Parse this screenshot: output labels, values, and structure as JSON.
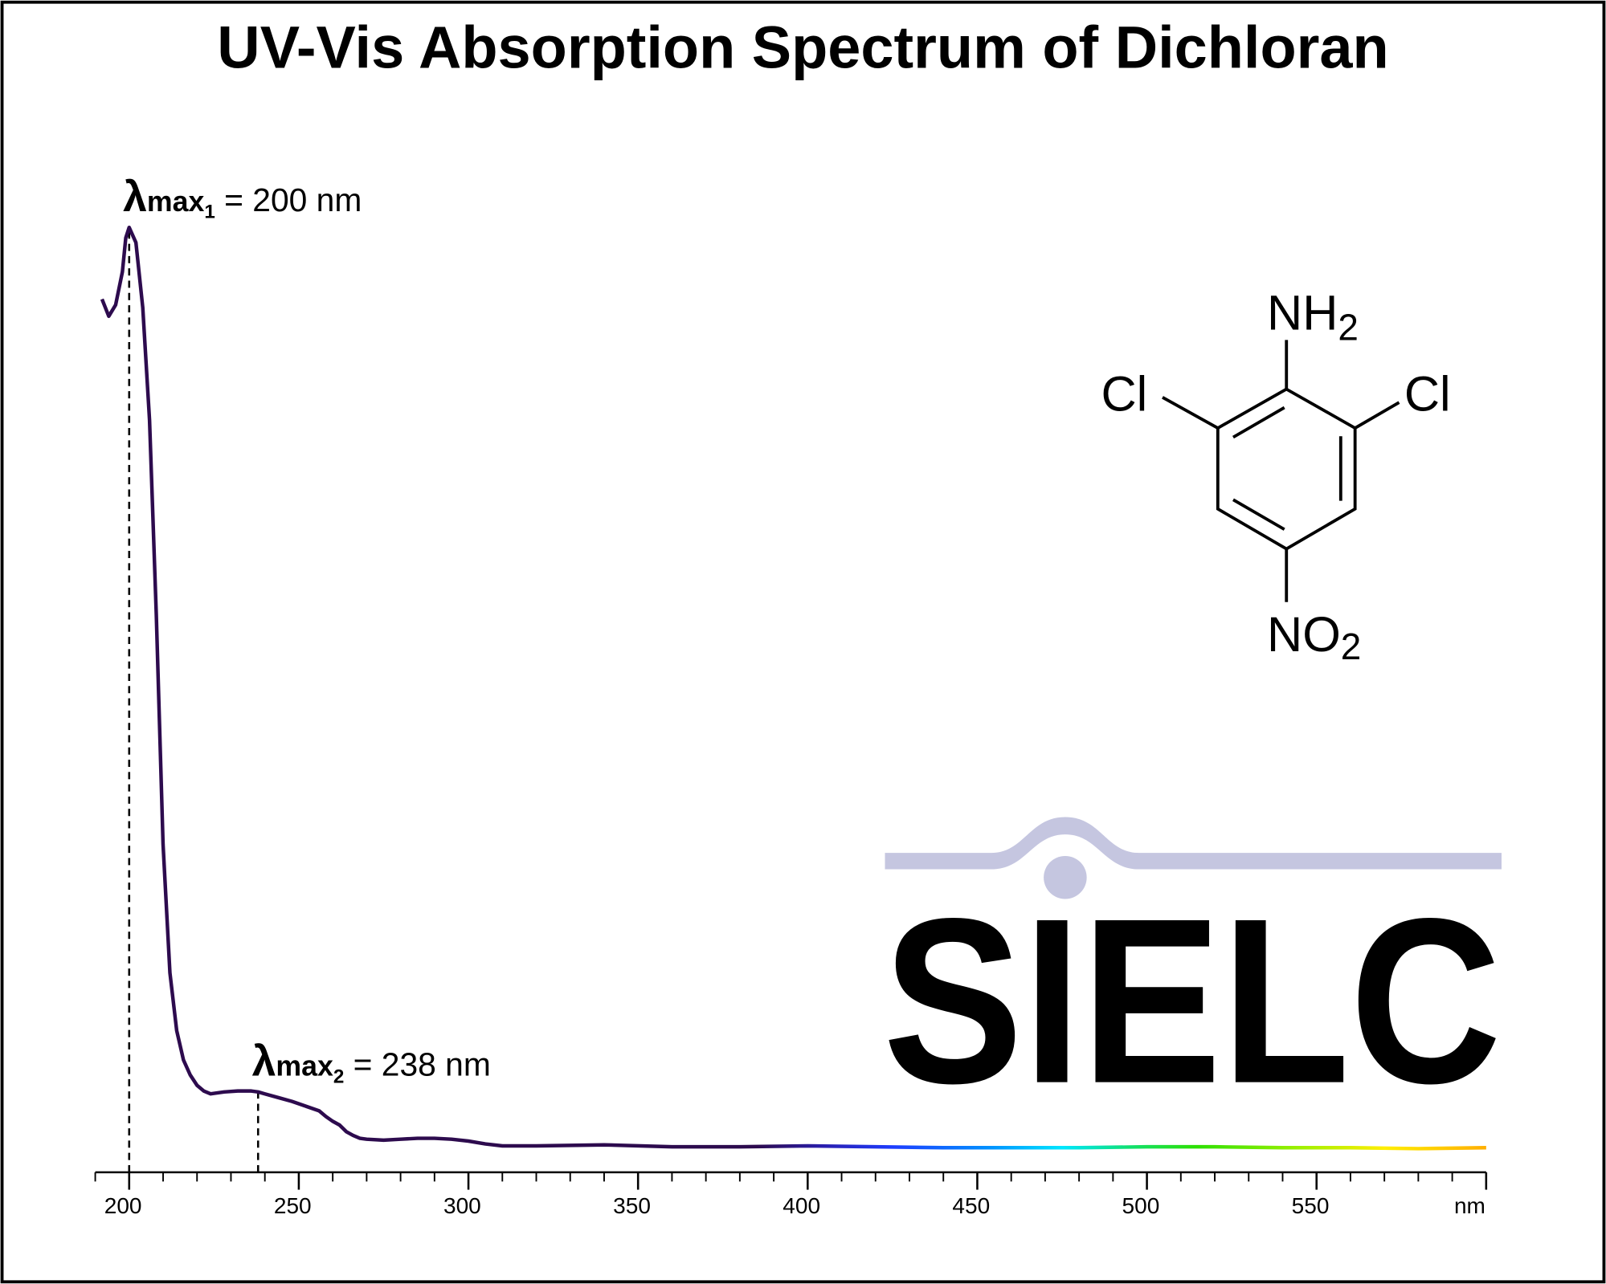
{
  "chart_data": {
    "type": "line",
    "title": "UV-Vis Absorption Spectrum of Dichloran",
    "x": [
      192,
      194,
      196,
      198,
      199,
      200,
      202,
      204,
      206,
      208,
      210,
      212,
      214,
      216,
      218,
      220,
      222,
      224,
      228,
      232,
      236,
      238,
      240,
      244,
      248,
      252,
      256,
      258,
      260,
      262,
      264,
      266,
      268,
      270,
      275,
      280,
      285,
      290,
      295,
      300,
      305,
      310,
      320,
      340,
      360,
      380,
      400,
      420,
      440,
      460,
      480,
      500,
      520,
      540,
      560,
      580,
      600
    ],
    "values": [
      0.924,
      0.906,
      0.918,
      0.953,
      0.989,
      1.0,
      0.984,
      0.915,
      0.796,
      0.59,
      0.347,
      0.211,
      0.15,
      0.119,
      0.103,
      0.092,
      0.086,
      0.083,
      0.085,
      0.086,
      0.086,
      0.085,
      0.083,
      0.079,
      0.075,
      0.07,
      0.065,
      0.059,
      0.054,
      0.05,
      0.043,
      0.039,
      0.036,
      0.035,
      0.034,
      0.035,
      0.036,
      0.036,
      0.035,
      0.033,
      0.03,
      0.028,
      0.028,
      0.029,
      0.027,
      0.027,
      0.028,
      0.027,
      0.026,
      0.026,
      0.026,
      0.027,
      0.027,
      0.026,
      0.026,
      0.025,
      0.026
    ],
    "xlim": [
      190,
      600
    ],
    "ylim": [
      0,
      1
    ],
    "xticks": [
      200,
      250,
      300,
      350,
      400,
      450,
      500,
      550,
      {
        "value": 600,
        "label": "nm"
      }
    ],
    "minor_xticks": [
      190,
      210,
      220,
      230,
      240,
      260,
      270,
      280,
      290,
      310,
      320,
      330,
      340,
      360,
      370,
      380,
      390,
      410,
      420,
      430,
      440,
      460,
      470,
      480,
      490,
      510,
      520,
      530,
      540,
      560,
      570,
      580,
      590
    ],
    "color_stops": [
      {
        "x": 190,
        "color": "#2d0b4e"
      },
      {
        "x": 385,
        "color": "#2d0b4e"
      },
      {
        "x": 405,
        "color": "#2a1fb0"
      },
      {
        "x": 425,
        "color": "#1d3cff"
      },
      {
        "x": 455,
        "color": "#0096ff"
      },
      {
        "x": 475,
        "color": "#00e6ff"
      },
      {
        "x": 495,
        "color": "#10e070"
      },
      {
        "x": 515,
        "color": "#2ee000"
      },
      {
        "x": 545,
        "color": "#9ef000"
      },
      {
        "x": 570,
        "color": "#ffee00"
      },
      {
        "x": 600,
        "color": "#ffae00"
      }
    ],
    "annotations": [
      {
        "x": 200,
        "y": 1.0,
        "symbol": "λ",
        "sub": "max",
        "index": "1",
        "text": " = 200 nm"
      },
      {
        "x": 238,
        "y": 0.085,
        "symbol": "λ",
        "sub": "max",
        "index": "2",
        "text": " = 238 nm"
      }
    ]
  },
  "structure": {
    "top": "NH",
    "top_index": "2",
    "left": "Cl",
    "right": "Cl",
    "bottom": "NO",
    "bottom_index": "2"
  },
  "watermark": "SIELC"
}
